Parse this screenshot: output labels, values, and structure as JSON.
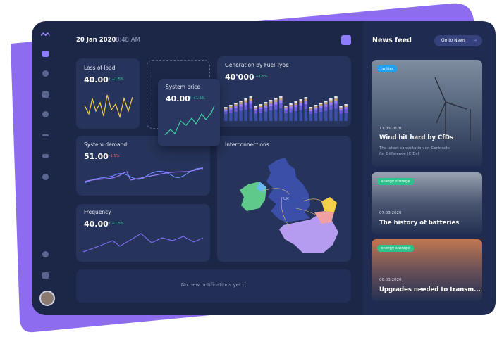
{
  "header": {
    "date": "20 Jan 2020",
    "time": "8:48 AM"
  },
  "widgets": [
    {
      "title": "Loss of load",
      "value": "40.00",
      "change": "+1.5%"
    },
    {
      "title": "System price",
      "value": "40.00",
      "change": "+1.5%"
    },
    {
      "title": "Generation by Fuel Type",
      "value": "40'000",
      "change": "+1.5%"
    },
    {
      "title": "System demand",
      "value": "51.00",
      "change": "-1.5%"
    },
    {
      "title": "Frequency",
      "value": "40.00",
      "change": "+1.5%"
    }
  ],
  "map": {
    "title": "Interconnections",
    "label": "UK"
  },
  "notifications": "No new notifications yet :(",
  "news": {
    "title": "News feed",
    "button": "Go to News",
    "items": [
      {
        "tag": "twitter",
        "date": "11.03.2020",
        "title": "Wind hit hard by CfDs",
        "summary": "The latest consultation on Contracts for Difference (CfDs)"
      },
      {
        "tag": "energy storage",
        "date": "07.03.2020",
        "title": "The history of batteries"
      },
      {
        "tag": "energy storage",
        "date": "08.03.2020",
        "title": "Upgrades needed to transm..."
      }
    ]
  }
}
